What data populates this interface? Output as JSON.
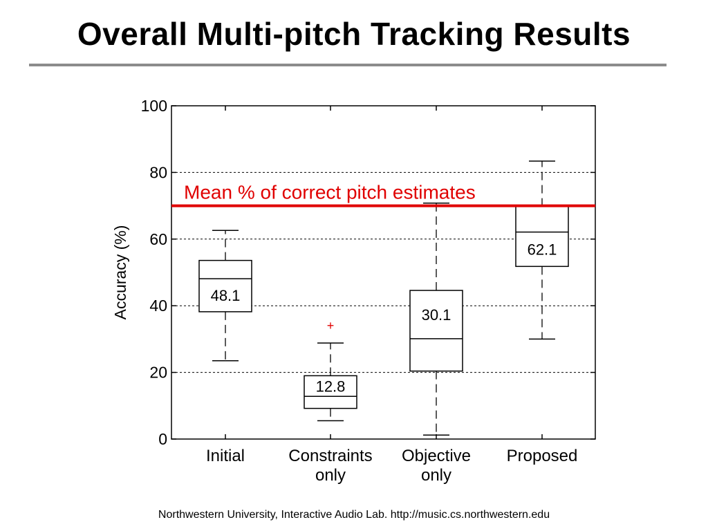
{
  "slide": {
    "title": "Overall Multi-pitch Tracking Results",
    "footer": "Northwestern University, Interactive Audio Lab. http://music.cs.northwestern.edu"
  },
  "chart_data": {
    "type": "box",
    "ylabel": "Accuracy (%)",
    "ylim": [
      0,
      100
    ],
    "yticks": [
      0,
      20,
      40,
      60,
      80,
      100
    ],
    "grid": "horizontal-dashed",
    "categories": [
      {
        "lines": [
          "Initial"
        ]
      },
      {
        "lines": [
          "Constraints",
          "only"
        ]
      },
      {
        "lines": [
          "Objective",
          "only"
        ]
      },
      {
        "lines": [
          "Proposed"
        ]
      }
    ],
    "boxes": [
      {
        "whisker_low": 23.5,
        "q1": 38.2,
        "median": 48.1,
        "q3": 53.6,
        "whisker_high": 62.6,
        "median_label": "48.1",
        "outliers": []
      },
      {
        "whisker_low": 5.5,
        "q1": 9.2,
        "median": 12.8,
        "q3": 19.0,
        "whisker_high": 28.8,
        "median_label": "12.8",
        "outliers": [
          34.0
        ]
      },
      {
        "whisker_low": 1.2,
        "q1": 20.4,
        "median": 30.1,
        "q3": 44.6,
        "whisker_high": 70.8,
        "median_label": "30.1",
        "outliers": []
      },
      {
        "whisker_low": 30.0,
        "q1": 51.8,
        "median": 62.1,
        "q3": 69.8,
        "whisker_high": 83.4,
        "median_label": "62.1",
        "outliers": []
      }
    ],
    "reference_line": {
      "value": 70,
      "label": "Mean % of correct pitch estimates",
      "color": "#e00000"
    },
    "outlier_marker": "+",
    "outlier_color": "#e00000"
  }
}
